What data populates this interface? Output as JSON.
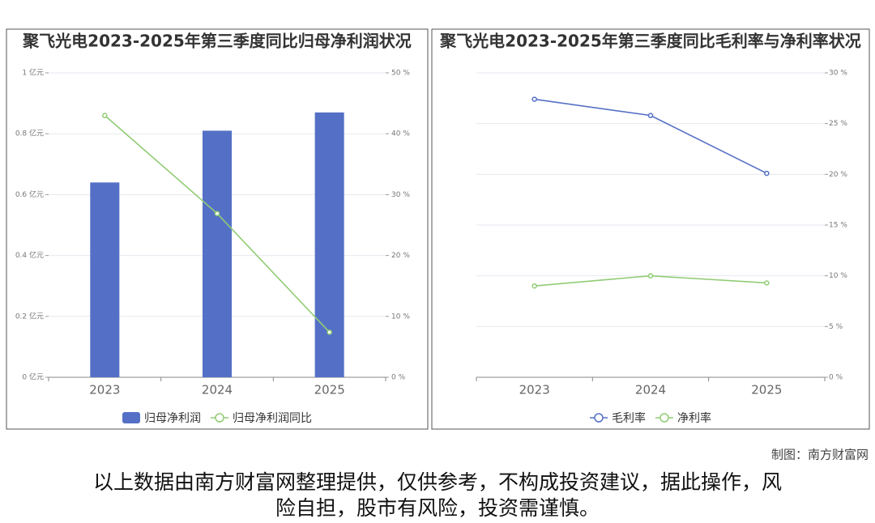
{
  "chart_data": [
    {
      "type": "bar",
      "title": "聚飞光电2023-2025年第三季度同比归母净利润状况",
      "categories": [
        "2023",
        "2024",
        "2025"
      ],
      "series": [
        {
          "name": "归母净利润",
          "type": "bar",
          "color": "#5470c6",
          "values": [
            0.64,
            0.81,
            0.87
          ]
        },
        {
          "name": "归母净利润同比",
          "type": "line",
          "axis": "y2",
          "color": "#91cc75",
          "values": [
            43,
            26.9,
            7.4
          ]
        }
      ],
      "ylim": [
        0,
        1
      ],
      "yticks": [
        {
          "value": 0,
          "label": "0 亿元"
        },
        {
          "value": 0.2,
          "label": "0.2 亿元"
        },
        {
          "value": 0.4,
          "label": "0.4 亿元"
        },
        {
          "value": 0.6,
          "label": "0.6 亿元"
        },
        {
          "value": 0.8,
          "label": "0.8 亿元"
        },
        {
          "value": 1,
          "label": "1 亿元"
        }
      ],
      "y2lim": [
        0,
        50
      ],
      "y2ticks": [
        {
          "value": 0,
          "label": "0 %"
        },
        {
          "value": 10,
          "label": "10 %"
        },
        {
          "value": 20,
          "label": "20 %"
        },
        {
          "value": 30,
          "label": "30 %"
        },
        {
          "value": 40,
          "label": "40 %"
        },
        {
          "value": 50,
          "label": "50 %"
        }
      ],
      "grid": true
    },
    {
      "type": "line",
      "title": "聚飞光电2023-2025年第三季度同比毛利率与净利率状况",
      "categories": [
        "2023",
        "2024",
        "2025"
      ],
      "series": [
        {
          "name": "毛利率",
          "axis": "y2",
          "color": "#5470c6",
          "values": [
            27.4,
            25.8,
            20.1
          ]
        },
        {
          "name": "净利率",
          "axis": "y2",
          "color": "#91cc75",
          "values": [
            9.0,
            10.0,
            9.3
          ]
        }
      ],
      "y2lim": [
        0,
        30
      ],
      "y2ticks": [
        {
          "value": 0,
          "label": "0 %"
        },
        {
          "value": 5,
          "label": "5 %"
        },
        {
          "value": 10,
          "label": "10 %"
        },
        {
          "value": 15,
          "label": "15 %"
        },
        {
          "value": 20,
          "label": "20 %"
        },
        {
          "value": 25,
          "label": "25 %"
        },
        {
          "value": 30,
          "label": "30 %"
        }
      ],
      "grid": true
    }
  ],
  "footer": {
    "credit": "制图：南方财富网",
    "disclaimer": [
      "以上数据由南方财富网整理提供，仅供参考，不构成投资建议，据此操作，风",
      "险自担，股市有风险，投资需谨慎。"
    ]
  }
}
